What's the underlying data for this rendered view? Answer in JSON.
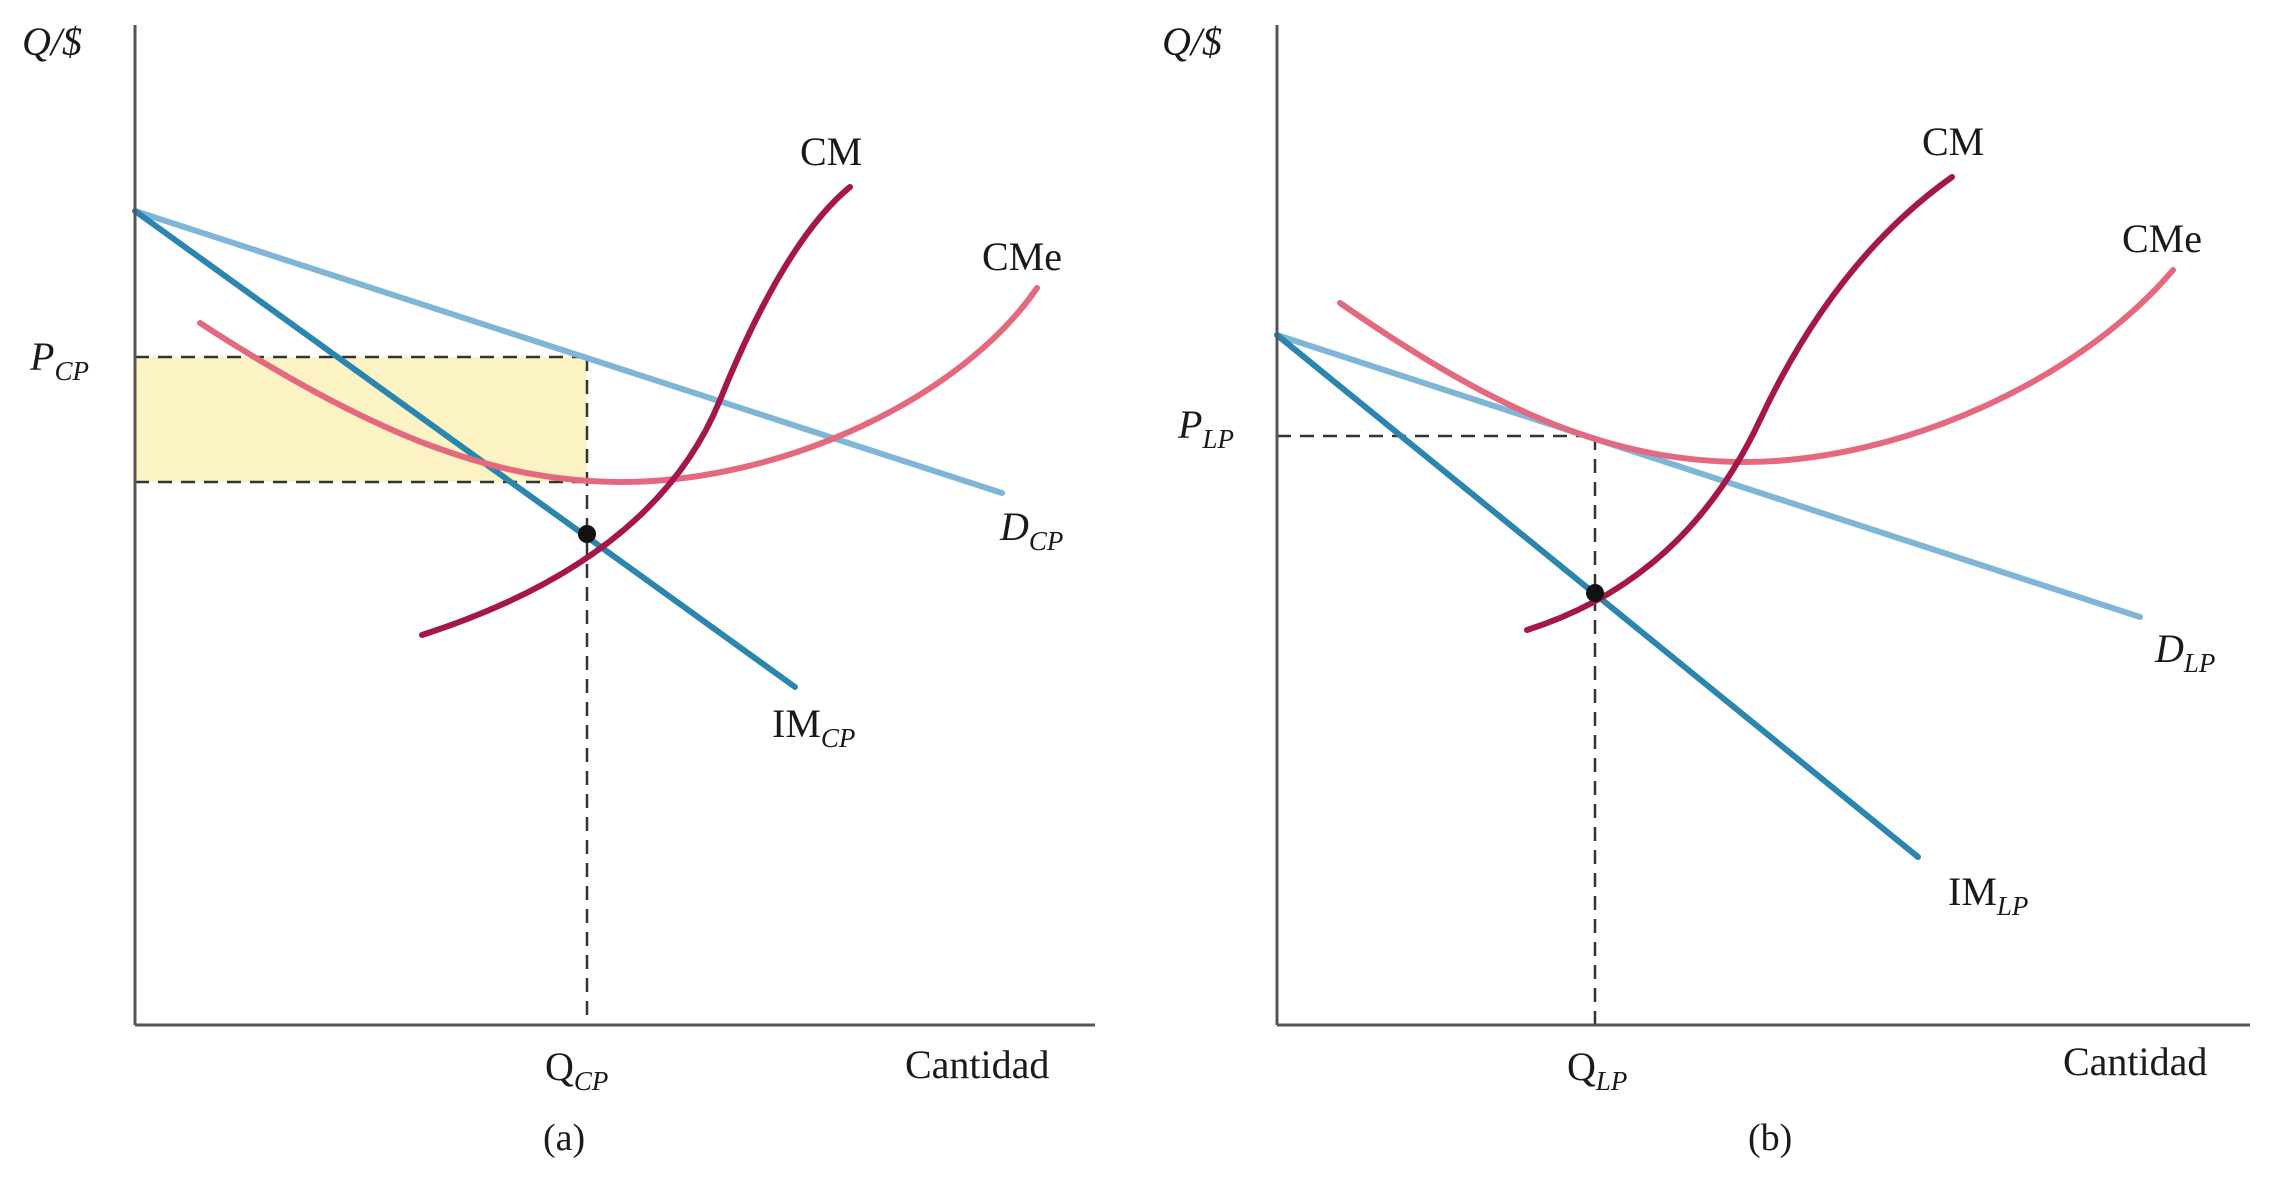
{
  "colors": {
    "axis": "#555555",
    "demand": "#7fb6d8",
    "marginal_revenue": "#2a86ae",
    "marginal_cost": "#a5174a",
    "average_cost": "#e4697e",
    "profit_fill": "#fcf3c5",
    "guide": "#333333",
    "point": "#111111"
  },
  "panels": [
    {
      "id": "a",
      "y_axis_label": "Q/$",
      "x_axis_label": "Cantidad",
      "caption": "(a)",
      "price_label": {
        "main": "P",
        "sub": "CP"
      },
      "quantity_label": {
        "main": "Q",
        "sub": "CP"
      },
      "curves": {
        "marginal_cost": {
          "main": "CM",
          "sub": ""
        },
        "average_cost": {
          "main": "CMe",
          "sub": ""
        },
        "demand": {
          "main": "D",
          "sub": "CP"
        },
        "marginal_revenue": {
          "main": "IM",
          "sub": "CP"
        }
      },
      "profit_area": true
    },
    {
      "id": "b",
      "y_axis_label": "Q/$",
      "x_axis_label": "Cantidad",
      "caption": "(b)",
      "price_label": {
        "main": "P",
        "sub": "LP"
      },
      "quantity_label": {
        "main": "Q",
        "sub": "LP"
      },
      "curves": {
        "marginal_cost": {
          "main": "CM",
          "sub": ""
        },
        "average_cost": {
          "main": "CMe",
          "sub": ""
        },
        "demand": {
          "main": "D",
          "sub": "LP"
        },
        "marginal_revenue": {
          "main": "IM",
          "sub": "LP"
        }
      },
      "profit_area": false
    }
  ]
}
